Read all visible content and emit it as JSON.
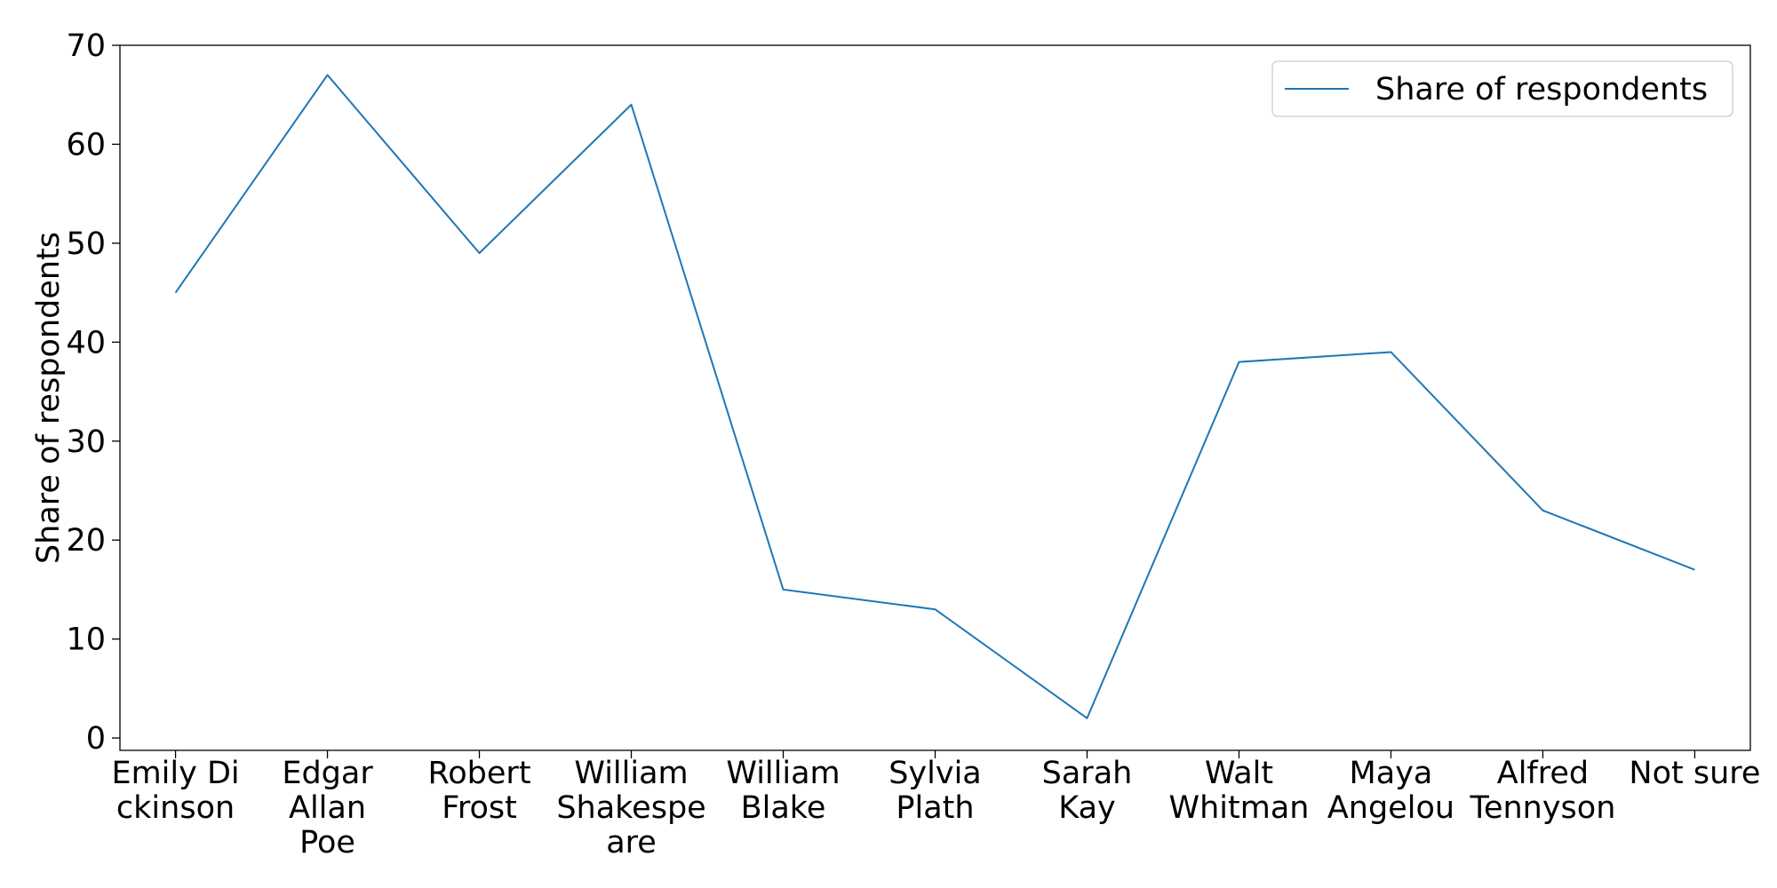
{
  "chart_data": {
    "type": "line",
    "categories": [
      [
        "Emily Di",
        "ckinson"
      ],
      [
        "Edgar",
        "Allan",
        "Poe"
      ],
      [
        "Robert",
        "Frost"
      ],
      [
        "William",
        "Shakespe",
        "are"
      ],
      [
        "William",
        "Blake"
      ],
      [
        "Sylvia",
        "Plath"
      ],
      [
        "Sarah",
        "Kay"
      ],
      [
        "Walt",
        "Whitman"
      ],
      [
        "Maya",
        "Angelou"
      ],
      [
        "Alfred",
        "Tennyson"
      ],
      [
        "Not sure"
      ]
    ],
    "series": [
      {
        "name": "Share of respondents",
        "values": [
          45,
          67,
          49,
          64,
          15,
          13,
          2,
          38,
          39,
          23,
          17
        ],
        "color": "#1f77b4"
      }
    ],
    "title": "",
    "xlabel": "",
    "ylabel": "Share of respondents",
    "ylim": [
      -1.25,
      70
    ],
    "yticks": [
      0,
      10,
      20,
      30,
      40,
      50,
      60,
      70
    ],
    "grid": false,
    "legend_position": "top-right"
  }
}
